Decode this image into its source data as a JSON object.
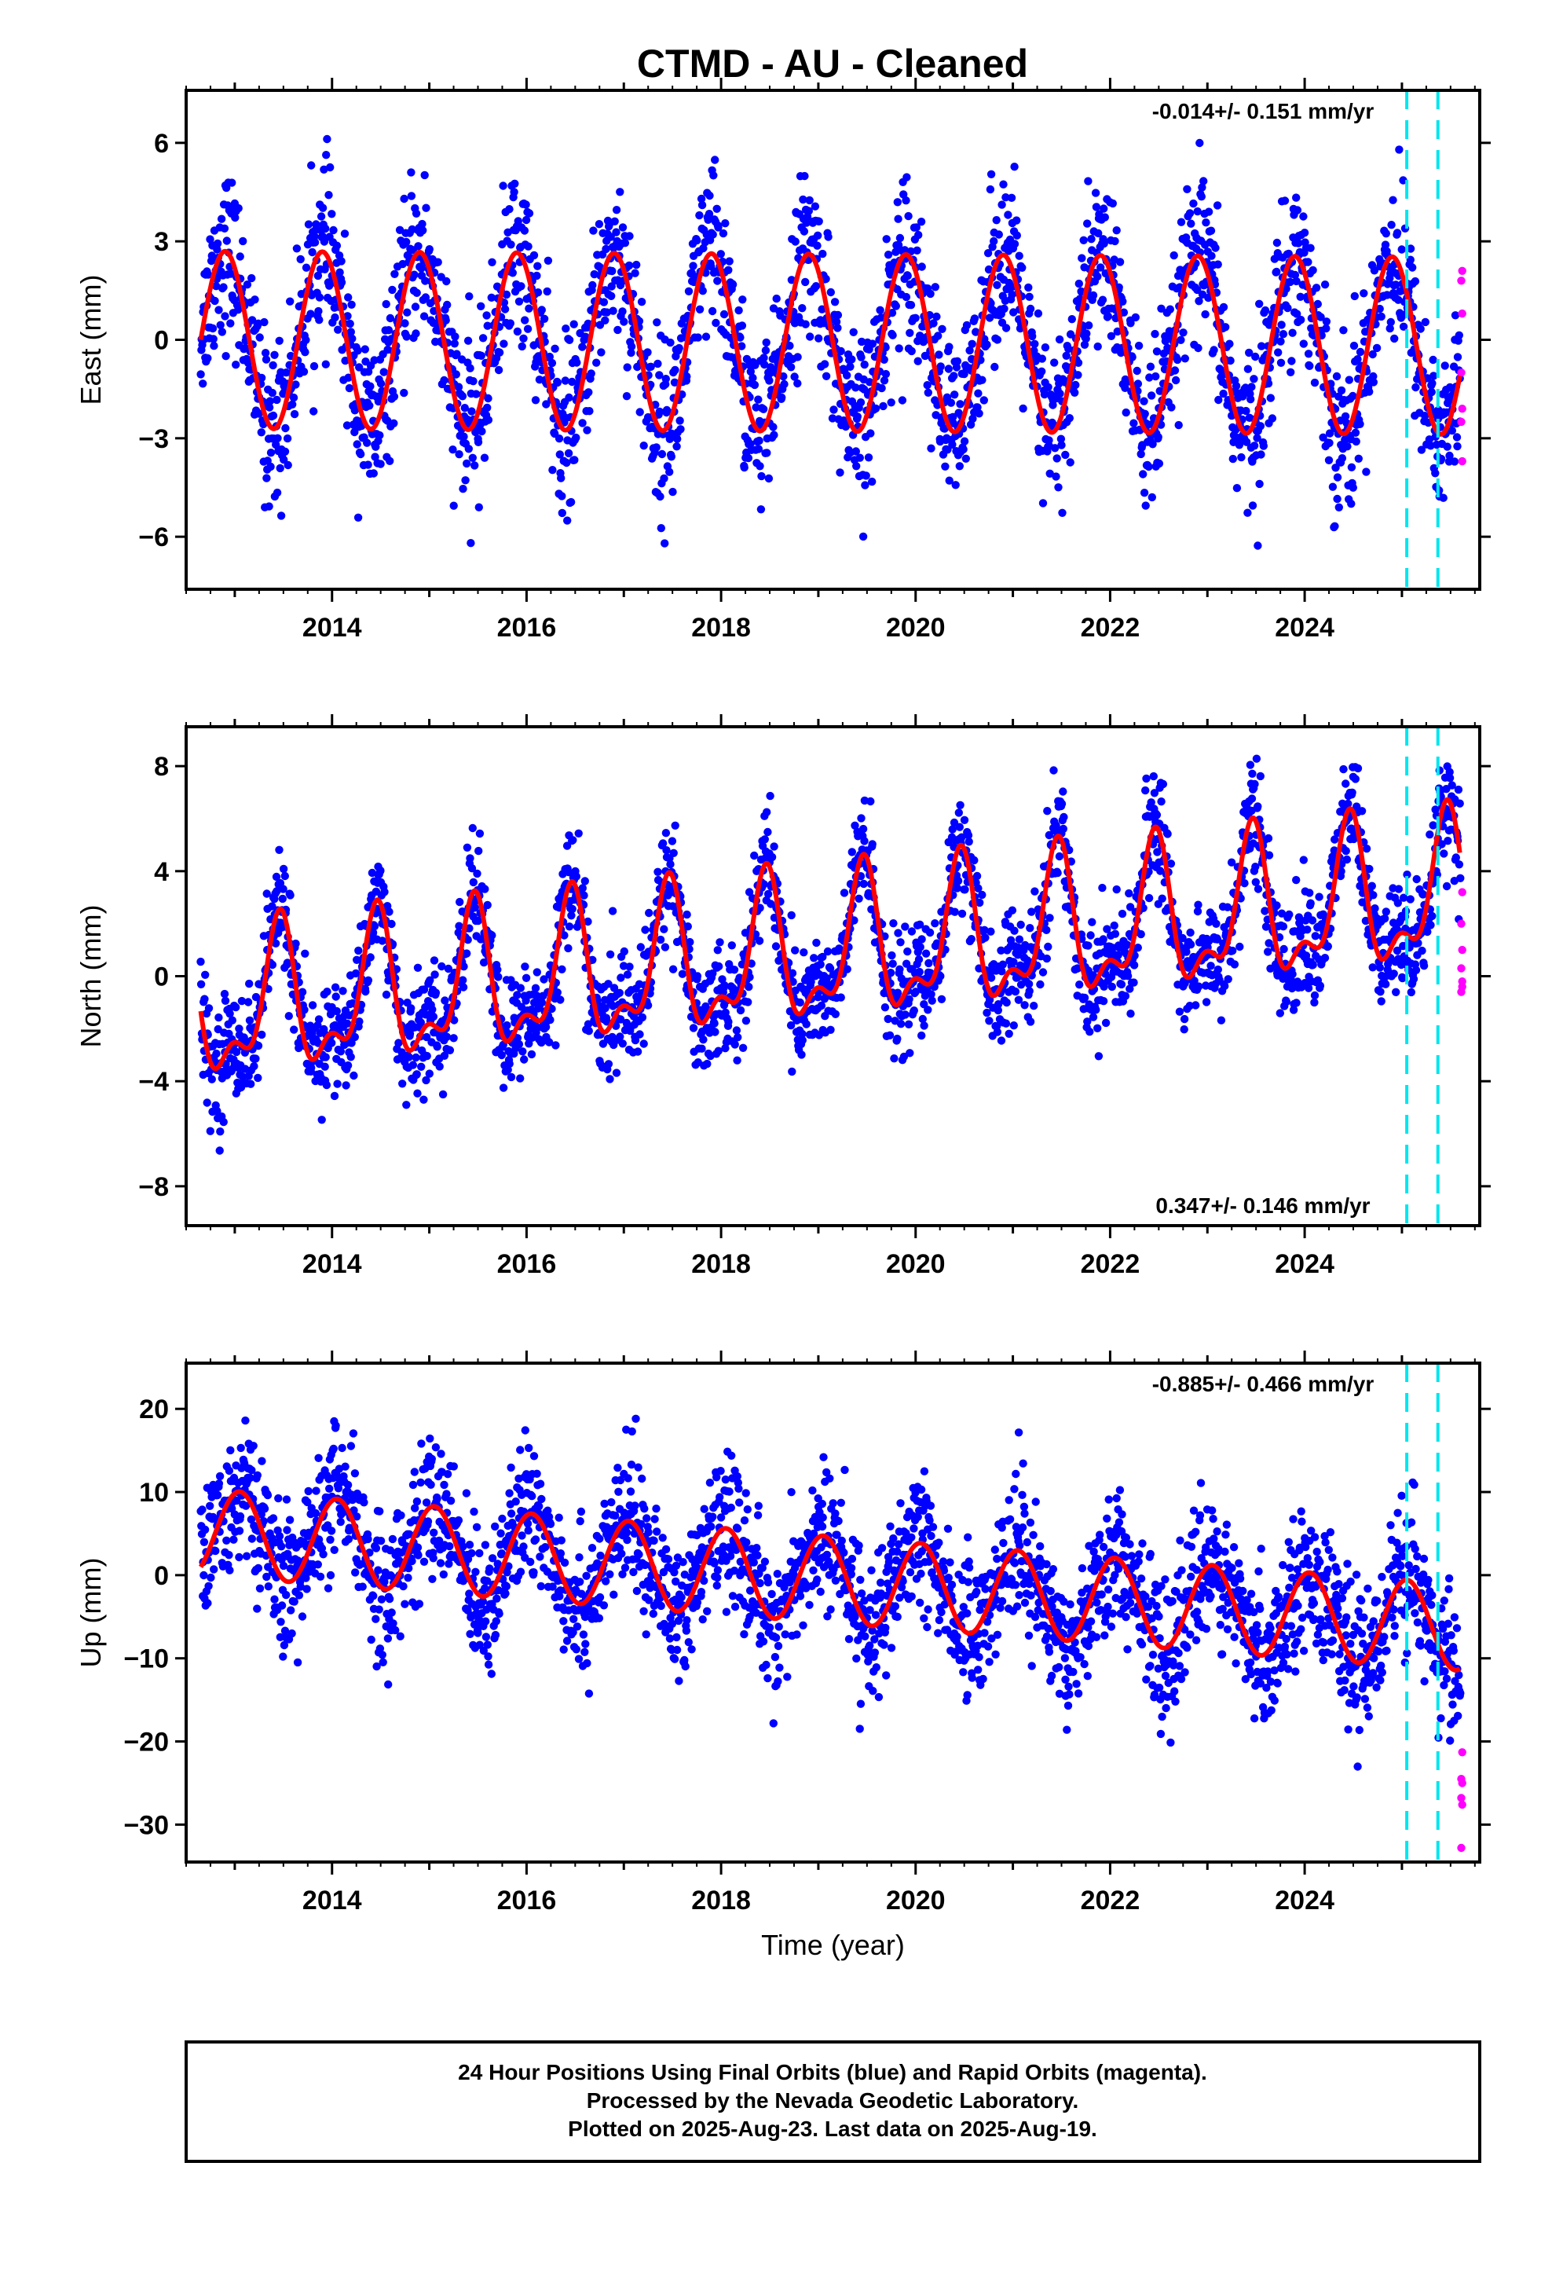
{
  "title": "CTMD  - AU - Cleaned",
  "chart_data": [
    {
      "type": "scatter",
      "name": "East",
      "ylabel": "East (mm)",
      "xlim": [
        2012.5,
        2025.8
      ],
      "ylim": [
        -7.6,
        7.6
      ],
      "yticks": [
        -6,
        -3,
        0,
        3,
        6
      ],
      "yticklabels": [
        "−6",
        "−3",
        "0",
        "3",
        "6"
      ],
      "xticks": [
        2014,
        2016,
        2018,
        2020,
        2022,
        2024
      ],
      "xticklabels": [
        "2014",
        "2016",
        "2018",
        "2020",
        "2022",
        "2024"
      ],
      "rate_label": "-0.014+/- 0.151 mm/yr",
      "rate_position": "top-right",
      "model": {
        "offset": 0.0,
        "trend": -0.014,
        "annual_amp": 2.7,
        "annual_phase": 2012.65,
        "semiannual_amp": 0.0,
        "semiannual_phase": 0.0,
        "start": 2012.65,
        "end": 2025.6
      },
      "scatter": {
        "noise": 1.2,
        "extra_amp": 0.8
      },
      "rapid": [
        2.1,
        1.8,
        0.8,
        -1.0,
        -2.1,
        -2.5,
        -3.7
      ],
      "vlines": [
        2025.05,
        2025.37
      ]
    },
    {
      "type": "scatter",
      "name": "North",
      "ylabel": "North (mm)",
      "xlim": [
        2012.5,
        2025.8
      ],
      "ylim": [
        -9.5,
        9.5
      ],
      "yticks": [
        -8,
        -4,
        0,
        4,
        8
      ],
      "yticklabels": [
        "−8",
        "−4",
        "0",
        "4",
        "8"
      ],
      "xticks": [
        2014,
        2016,
        2018,
        2020,
        2022,
        2024
      ],
      "xticklabels": [
        "2014",
        "2016",
        "2018",
        "2020",
        "2022",
        "2024"
      ],
      "rate_label": "0.347+/- 0.146 mm/yr",
      "rate_position": "bottom-right",
      "model": {
        "offset": -1.4,
        "trend": 0.347,
        "annual_amp": 2.5,
        "annual_phase": 2013.2,
        "semiannual_amp": 1.2,
        "semiannual_phase": 2013.35,
        "start": 2012.65,
        "end": 2025.6
      },
      "scatter": {
        "noise": 1.1,
        "extra_amp": 0.5
      },
      "rapid": [
        3.2,
        2.0,
        1.0,
        0.3,
        -0.2,
        -0.6,
        -0.4
      ],
      "vlines": [
        2025.05,
        2025.37
      ]
    },
    {
      "type": "scatter",
      "name": "Up",
      "ylabel": "Up (mm)",
      "xlim": [
        2012.5,
        2025.8
      ],
      "ylim": [
        -34.5,
        25.5
      ],
      "yticks": [
        -30,
        -20,
        -10,
        0,
        10,
        20
      ],
      "yticklabels": [
        "−30",
        "−20",
        "−10",
        "0",
        "10",
        "20"
      ],
      "xticks": [
        2014,
        2016,
        2018,
        2020,
        2022,
        2024
      ],
      "xticklabels": [
        "2014",
        "2016",
        "2018",
        "2020",
        "2022",
        "2024"
      ],
      "xlabel": "Time (year)",
      "rate_label": "-0.885+/- 0.466 mm/yr",
      "rate_position": "top-right",
      "model": {
        "offset": 5.2,
        "trend": -0.885,
        "annual_amp": 5.2,
        "annual_phase": 2012.8,
        "semiannual_amp": 0.0,
        "semiannual_phase": 0.0,
        "start": 2012.65,
        "end": 2025.6
      },
      "scatter": {
        "noise": 3.8,
        "extra_amp": 2.0
      },
      "rapid": [
        -21.3,
        -24.5,
        -25.0,
        -26.8,
        -27.6,
        -32.8
      ],
      "vlines": [
        2025.05,
        2025.37
      ]
    }
  ],
  "footer": {
    "line1": "24 Hour Positions Using Final Orbits (blue) and Rapid Orbits (magenta).",
    "line2": "Processed by the Nevada Geodetic Laboratory.",
    "line3": "Plotted on 2025-Aug-23. Last data on 2025-Aug-19."
  },
  "colors": {
    "final_points": "#0000ff",
    "rapid_points": "#ff00ff",
    "model_line": "#ff0000",
    "vline": "#00e5ee",
    "frame": "#000000"
  }
}
